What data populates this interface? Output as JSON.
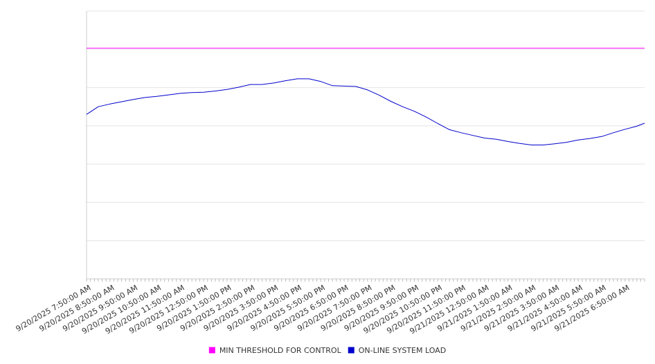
{
  "chart_data": {
    "type": "line",
    "title": "",
    "xlabel": "",
    "ylabel": "",
    "y_tick_labels_shown": false,
    "grid": {
      "horizontal": true,
      "vertical": false
    },
    "legend_position": "bottom-center",
    "ylim": [
      0,
      7
    ],
    "x_tick_labels": [
      "9/20/2025 7:50:00 AM",
      "9/20/2025 8:50:00 AM",
      "9/20/2025 9:50:00 AM",
      "9/20/2025 10:50:00 AM",
      "9/20/2025 11:50:00 AM",
      "9/20/2025 12:50:00 PM",
      "9/20/2025 1:50:00 PM",
      "9/20/2025 2:50:00 PM",
      "9/20/2025 3:50:00 PM",
      "9/20/2025 4:50:00 PM",
      "9/20/2025 5:50:00 PM",
      "9/20/2025 6:50:00 PM",
      "9/20/2025 7:50:00 PM",
      "9/20/2025 8:50:00 PM",
      "9/20/2025 9:50:00 PM",
      "9/20/2025 10:50:00 PM",
      "9/20/2025 11:50:00 PM",
      "9/21/2025 12:50:00 AM",
      "9/21/2025 1:50:00 AM",
      "9/21/2025 2:50:00 AM",
      "9/21/2025 3:50:00 AM",
      "9/21/2025 4:50:00 AM",
      "9/21/2025 5:50:00 AM",
      "9/21/2025 6:50:00 AM"
    ],
    "x_start": "9/20/2025 7:50:00 AM",
    "x_end": "9/21/2025 7:40:00 AM",
    "series": [
      {
        "name": "MIN THRESHOLD FOR CONTROL",
        "color": "#ff00ff",
        "times": [
          "9/20/2025 7:50:00 AM",
          "9/21/2025 7:40:00 AM"
        ],
        "values": [
          6.03,
          6.03
        ]
      },
      {
        "name": "ON-LINE SYSTEM LOAD",
        "color": "#0000cc",
        "times": [
          "9/20/2025 7:50:00 AM",
          "9/20/2025 8:20:00 AM",
          "9/20/2025 8:50:00 AM",
          "9/20/2025 9:20:00 AM",
          "9/20/2025 9:50:00 AM",
          "9/20/2025 10:20:00 AM",
          "9/20/2025 10:50:00 AM",
          "9/20/2025 11:20:00 AM",
          "9/20/2025 11:50:00 AM",
          "9/20/2025 12:20:00 PM",
          "9/20/2025 12:50:00 PM",
          "9/20/2025 1:20:00 PM",
          "9/20/2025 1:50:00 PM",
          "9/20/2025 2:20:00 PM",
          "9/20/2025 2:50:00 PM",
          "9/20/2025 3:20:00 PM",
          "9/20/2025 3:50:00 PM",
          "9/20/2025 4:20:00 PM",
          "9/20/2025 4:50:00 PM",
          "9/20/2025 5:20:00 PM",
          "9/20/2025 5:50:00 PM",
          "9/20/2025 6:20:00 PM",
          "9/20/2025 6:50:00 PM",
          "9/20/2025 7:20:00 PM",
          "9/20/2025 7:50:00 PM",
          "9/20/2025 8:20:00 PM",
          "9/20/2025 8:50:00 PM",
          "9/20/2025 9:20:00 PM",
          "9/20/2025 9:50:00 PM",
          "9/20/2025 10:20:00 PM",
          "9/20/2025 10:50:00 PM",
          "9/20/2025 11:20:00 PM",
          "9/20/2025 11:50:00 PM",
          "9/21/2025 12:20:00 AM",
          "9/21/2025 12:50:00 AM",
          "9/21/2025 1:20:00 AM",
          "9/21/2025 1:50:00 AM",
          "9/21/2025 2:20:00 AM",
          "9/21/2025 2:50:00 AM",
          "9/21/2025 3:20:00 AM",
          "9/21/2025 3:50:00 AM",
          "9/21/2025 4:20:00 AM",
          "9/21/2025 4:50:00 AM",
          "9/21/2025 5:20:00 AM",
          "9/21/2025 5:50:00 AM",
          "9/21/2025 6:20:00 AM",
          "9/21/2025 6:50:00 AM",
          "9/21/2025 7:20:00 AM",
          "9/21/2025 7:40:00 AM"
        ],
        "values": [
          4.3,
          4.5,
          4.57,
          4.63,
          4.69,
          4.74,
          4.77,
          4.81,
          4.85,
          4.87,
          4.88,
          4.91,
          4.95,
          5.01,
          5.08,
          5.08,
          5.12,
          5.18,
          5.23,
          5.23,
          5.16,
          5.05,
          5.04,
          5.03,
          4.94,
          4.8,
          4.64,
          4.5,
          4.38,
          4.23,
          4.06,
          3.9,
          3.82,
          3.75,
          3.68,
          3.65,
          3.59,
          3.54,
          3.5,
          3.5,
          3.53,
          3.57,
          3.63,
          3.67,
          3.72,
          3.82,
          3.91,
          3.99,
          4.07
        ]
      }
    ]
  }
}
